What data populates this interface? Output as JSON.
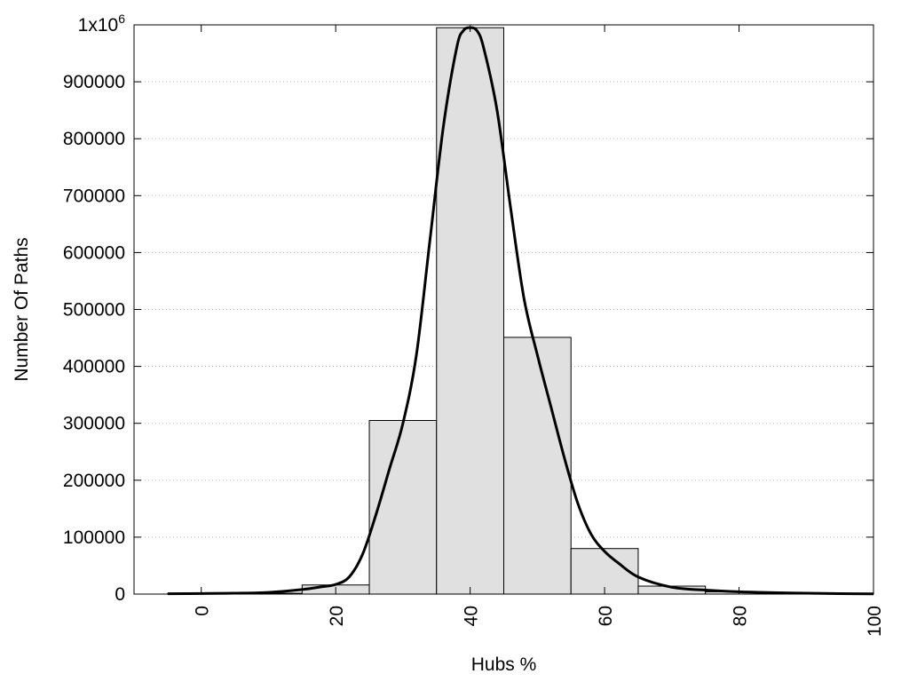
{
  "chart_data": {
    "type": "bar",
    "title": "",
    "xlabel": "Hubs %",
    "ylabel": "Number Of Paths",
    "xlim": [
      -10,
      100
    ],
    "ylim": [
      0,
      1000000
    ],
    "grid": true,
    "x_ticks": [
      {
        "value": 0,
        "label": "0"
      },
      {
        "value": 20,
        "label": "20"
      },
      {
        "value": 40,
        "label": "40"
      },
      {
        "value": 60,
        "label": "60"
      },
      {
        "value": 80,
        "label": "80"
      },
      {
        "value": 100,
        "label": "100"
      }
    ],
    "y_ticks": [
      {
        "value": 0,
        "label": "0"
      },
      {
        "value": 100000,
        "label": "100000"
      },
      {
        "value": 200000,
        "label": "200000"
      },
      {
        "value": 300000,
        "label": "300000"
      },
      {
        "value": 400000,
        "label": "400000"
      },
      {
        "value": 500000,
        "label": "500000"
      },
      {
        "value": 600000,
        "label": "600000"
      },
      {
        "value": 700000,
        "label": "700000"
      },
      {
        "value": 800000,
        "label": "800000"
      },
      {
        "value": 900000,
        "label": "900000"
      }
    ],
    "y_top_label": {
      "value": 1000000,
      "base": "1x10",
      "exponent": "6"
    },
    "bars": [
      {
        "x0": -5,
        "x1": 5,
        "value": 1000
      },
      {
        "x0": 5,
        "x1": 15,
        "value": 1500
      },
      {
        "x0": 15,
        "x1": 25,
        "value": 16000
      },
      {
        "x0": 25,
        "x1": 35,
        "value": 305000
      },
      {
        "x0": 35,
        "x1": 45,
        "value": 995000
      },
      {
        "x0": 45,
        "x1": 55,
        "value": 451000
      },
      {
        "x0": 55,
        "x1": 65,
        "value": 80000
      },
      {
        "x0": 65,
        "x1": 75,
        "value": 14000
      },
      {
        "x0": 75,
        "x1": 85,
        "value": 4000
      },
      {
        "x0": 85,
        "x1": 95,
        "value": 1000
      },
      {
        "x0": 95,
        "x1": 105,
        "value": 500
      }
    ],
    "curve": {
      "x": [
        -5,
        0,
        5,
        10,
        15,
        18,
        20,
        22,
        24,
        26,
        28,
        30,
        32,
        34,
        36,
        38,
        39,
        40,
        41,
        42,
        44,
        46,
        48,
        50,
        52,
        54,
        56,
        58,
        60,
        62,
        65,
        70,
        75,
        80,
        85,
        90,
        95,
        100
      ],
      "y": [
        500,
        1000,
        1500,
        3000,
        8000,
        13000,
        17000,
        30000,
        70000,
        140000,
        220000,
        300000,
        420000,
        620000,
        820000,
        960000,
        990000,
        995000,
        990000,
        960000,
        850000,
        680000,
        520000,
        420000,
        330000,
        240000,
        160000,
        105000,
        75000,
        55000,
        30000,
        12000,
        7000,
        4000,
        2500,
        1500,
        800,
        400
      ]
    }
  }
}
